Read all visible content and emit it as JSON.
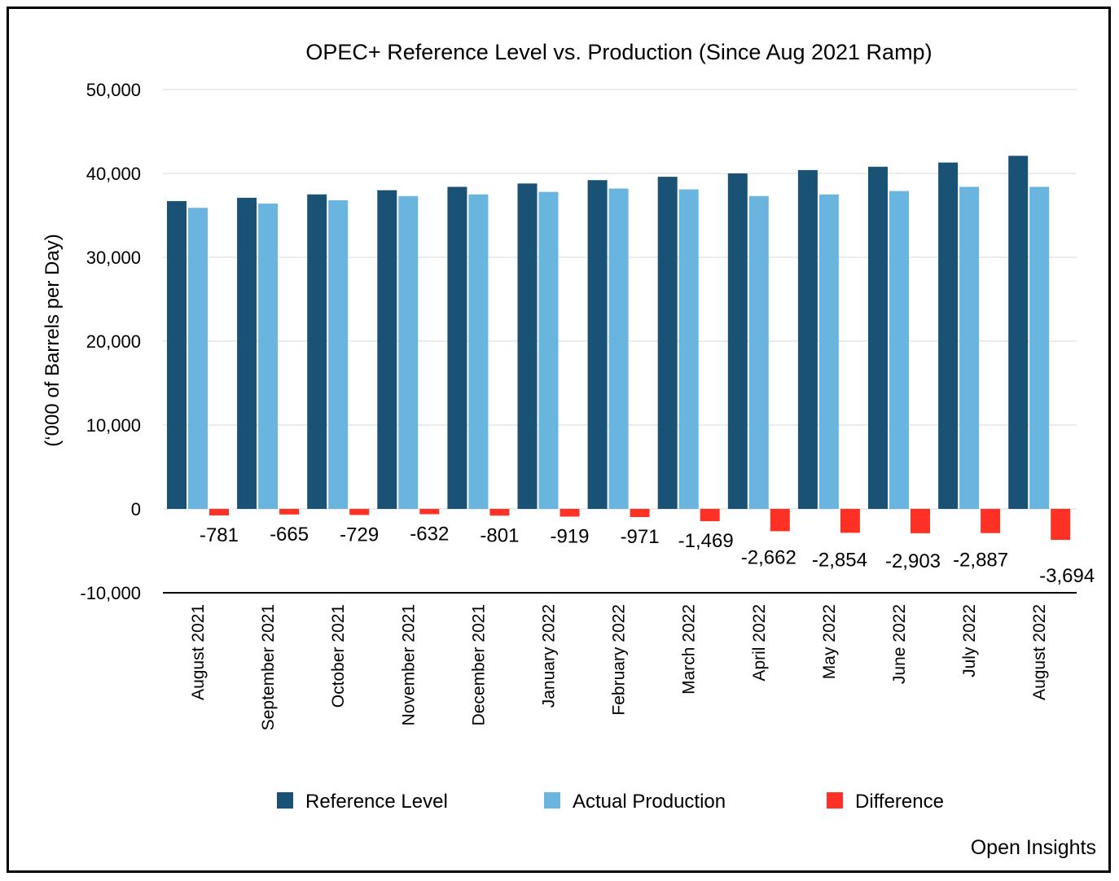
{
  "chart_data": {
    "type": "bar",
    "title": "OPEC+ Reference Level vs. Production (Since Aug 2021 Ramp)",
    "xlabel": "",
    "ylabel": "(‘000 of Barrels per Day)",
    "ylim": [
      -10000,
      50000
    ],
    "yticks": [
      "50,000",
      "40,000",
      "30,000",
      "20,000",
      "10,000",
      "0",
      "-10,000"
    ],
    "grid": true,
    "legend_position": "bottom",
    "categories": [
      "August 2021",
      "September 2021",
      "October 2021",
      "November 2021",
      "December 2021",
      "January 2022",
      "February 2022",
      "March 2022",
      "April 2022",
      "May 2022",
      "June 2022",
      "July 2022",
      "August 2022"
    ],
    "series": [
      {
        "name": "Reference Level",
        "color": "#1a5276",
        "values": [
          36700,
          37100,
          37500,
          38000,
          38400,
          38800,
          39200,
          39600,
          40000,
          40400,
          40800,
          41300,
          42100
        ]
      },
      {
        "name": "Actual Production",
        "color": "#6ab4e0",
        "values": [
          35900,
          36400,
          36800,
          37300,
          37500,
          37800,
          38200,
          38100,
          37300,
          37500,
          37900,
          38400,
          38400
        ]
      },
      {
        "name": "Difference",
        "color": "#ff3124",
        "values": [
          -781,
          -665,
          -729,
          -632,
          -801,
          -919,
          -971,
          -1469,
          -2662,
          -2854,
          -2903,
          -2887,
          -3694
        ]
      }
    ],
    "data_labels": [
      "-781",
      "-665",
      "-729",
      "-632",
      "-801",
      "-919",
      "-971",
      "-1,469",
      "-2,662",
      "-2,854",
      "-2,903",
      "-2,887",
      "-3,694"
    ]
  },
  "footer": "Open Insights"
}
